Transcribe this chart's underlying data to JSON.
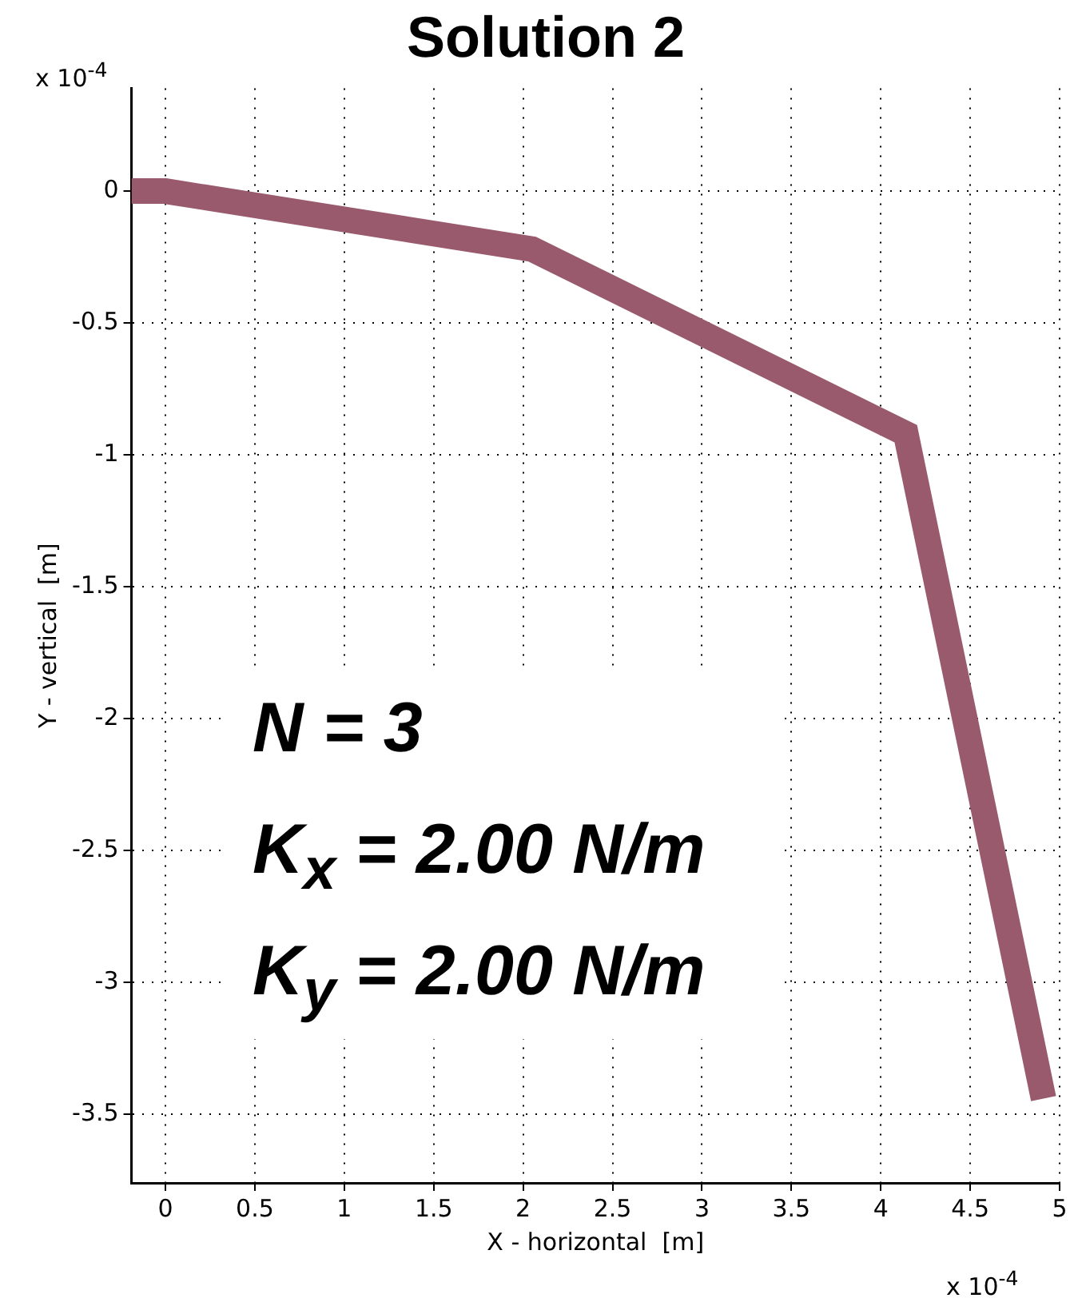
{
  "chart_data": {
    "type": "line",
    "title": "Solution 2",
    "xlabel": "X - horizontal  [m]",
    "ylabel": "Y - vertical  [m]",
    "x": [
      -0.19,
      0,
      2.05,
      4.14,
      4.91
    ],
    "series": [
      {
        "color": "#9a5a6e",
        "values": [
          0,
          0,
          -0.22,
          -0.92,
          -3.44
        ]
      }
    ],
    "xlim": [
      -0.19,
      5
    ],
    "xticks": [
      0,
      0.5,
      1,
      1.5,
      2,
      2.5,
      3,
      3.5,
      4,
      4.5,
      5
    ],
    "ylim": [
      -3.76,
      0.39
    ],
    "yticks": [
      -3.5,
      -3,
      -2.5,
      -2,
      -1.5,
      -1,
      -0.5,
      0
    ],
    "grid": true,
    "marker": "none",
    "line_style": "solid",
    "annotations": [
      "x 10$^{-4}$",
      "x 10$^{-4}$",
      "N  = 3",
      "K$_{x}$ = 2.00 N/m",
      "K$_{y}$ = 2.00 N/m"
    ]
  }
}
